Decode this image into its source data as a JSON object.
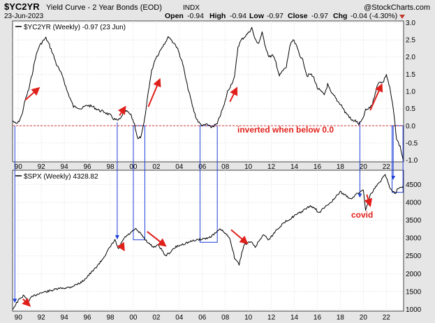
{
  "header": {
    "symbol": "$YC2YR",
    "description": "Yield Curve - 2 Year Bonds (EOD)",
    "exchange": "INDX",
    "date": "23-Jun-2023",
    "watermark": "@StockCharts.com",
    "ohlc": [
      {
        "label": "Open",
        "value": "-0.94"
      },
      {
        "label": "High",
        "value": "-0.94"
      },
      {
        "label": "Low",
        "value": "-0.97"
      },
      {
        "label": "Close",
        "value": "-0.97"
      },
      {
        "label": "Chg",
        "value": "-0.04 (-4.30%)"
      }
    ],
    "change_arrow": "triangle-down-icon"
  },
  "colors": {
    "background": "#e6e6e6",
    "panel": "#ffffff",
    "line": "#000000",
    "annotation": "#e0201b",
    "blue_marker": "#1f3fd6",
    "zero_line": "#d23a3a"
  },
  "chart_data": [
    {
      "type": "line",
      "legend": "$YC2YR (Weekly) -0.97 (23 Jun)",
      "x_range": [
        1989.5,
        2023.5
      ],
      "ylim": [
        -1.05,
        3.05
      ],
      "y_ticks": [
        -1.0,
        -0.5,
        0.0,
        0.5,
        1.0,
        1.5,
        2.0,
        2.5,
        3.0
      ],
      "y_tick_labels": [
        "-1.0",
        "-0.5",
        "0.0",
        "0.5",
        "1.0",
        "1.5",
        "2.0",
        "2.5",
        "3.0"
      ],
      "x_ticks": [
        1990,
        1992,
        1994,
        1996,
        1998,
        2000,
        2002,
        2004,
        2006,
        2008,
        2010,
        2012,
        2014,
        2016,
        2018,
        2020,
        2022
      ],
      "x_tick_labels": [
        "90",
        "92",
        "94",
        "96",
        "98",
        "00",
        "02",
        "04",
        "06",
        "08",
        "10",
        "12",
        "14",
        "16",
        "18",
        "20",
        "22"
      ],
      "grid": true,
      "reference_line": {
        "y": 0.0,
        "style": "dashed",
        "color": "#d23a3a"
      },
      "annotations": [
        {
          "text": "inverted when below 0.0",
          "x": 2014.5,
          "y": -0.25
        }
      ],
      "series": [
        {
          "x": [
            1989.5,
            1989.8,
            1990.0,
            1990.3,
            1990.6,
            1990.9,
            1991.2,
            1991.5,
            1991.8,
            1992.1,
            1992.4,
            1992.7,
            1993.0,
            1993.3,
            1993.6,
            1993.9,
            1994.2,
            1994.5,
            1994.8,
            1995.1,
            1995.5,
            1996.0,
            1996.5,
            1997.0,
            1997.5,
            1998.0,
            1998.3,
            1998.6,
            1998.9,
            1999.2,
            1999.5,
            1999.8,
            2000.1,
            2000.4,
            2000.7,
            2001.0,
            2001.3,
            2001.6,
            2001.9,
            2002.2,
            2002.5,
            2002.8,
            2003.1,
            2003.4,
            2003.7,
            2004.0,
            2004.3,
            2004.6,
            2004.9,
            2005.2,
            2005.5,
            2005.8,
            2006.1,
            2006.4,
            2006.7,
            2007.0,
            2007.3,
            2007.6,
            2007.9,
            2008.2,
            2008.5,
            2008.8,
            2009.1,
            2009.4,
            2009.7,
            2010.0,
            2010.3,
            2010.6,
            2010.9,
            2011.2,
            2011.5,
            2011.8,
            2012.1,
            2012.4,
            2012.7,
            2013.0,
            2013.3,
            2013.6,
            2013.9,
            2014.2,
            2014.5,
            2014.8,
            2015.1,
            2015.4,
            2015.7,
            2016.0,
            2016.3,
            2016.6,
            2016.9,
            2017.2,
            2017.5,
            2017.8,
            2018.1,
            2018.4,
            2018.7,
            2019.0,
            2019.3,
            2019.6,
            2019.9,
            2020.2,
            2020.5,
            2020.8,
            2021.1,
            2021.4,
            2021.7,
            2022.0,
            2022.3,
            2022.6,
            2022.9,
            2023.2,
            2023.45
          ],
          "y": [
            0.15,
            0.05,
            0.1,
            0.3,
            0.75,
            1.05,
            1.5,
            2.0,
            2.3,
            2.45,
            2.55,
            2.35,
            2.1,
            1.8,
            1.6,
            1.4,
            1.05,
            0.8,
            0.55,
            0.55,
            0.5,
            0.6,
            0.55,
            0.45,
            0.4,
            0.3,
            0.2,
            0.15,
            0.2,
            0.45,
            0.4,
            0.3,
            0.05,
            -0.4,
            -0.3,
            0.2,
            1.0,
            1.6,
            1.95,
            2.1,
            2.3,
            2.45,
            2.6,
            2.45,
            2.35,
            2.1,
            1.8,
            1.3,
            0.9,
            0.5,
            0.2,
            0.05,
            0.0,
            0.05,
            -0.05,
            0.0,
            0.05,
            0.35,
            0.6,
            1.0,
            1.2,
            1.4,
            2.3,
            2.5,
            2.6,
            2.7,
            2.85,
            2.5,
            2.4,
            2.7,
            2.3,
            2.0,
            2.05,
            1.85,
            1.45,
            1.6,
            1.7,
            2.3,
            2.5,
            2.3,
            2.05,
            1.85,
            1.45,
            1.5,
            1.4,
            1.1,
            1.0,
            0.9,
            1.2,
            0.95,
            0.85,
            0.7,
            0.6,
            0.4,
            0.3,
            0.15,
            0.15,
            0.05,
            0.15,
            0.45,
            0.5,
            0.65,
            1.05,
            1.3,
            1.25,
            1.5,
            1.1,
            0.5,
            -0.4,
            -0.6,
            -0.97
          ]
        }
      ]
    },
    {
      "type": "line",
      "legend": "$SPX (Weekly) 4328.82",
      "x_range": [
        1989.5,
        2023.5
      ],
      "ylim": [
        950,
        4900
      ],
      "y_ticks": [
        1000,
        1500,
        2000,
        2500,
        3000,
        3500,
        4000,
        4500
      ],
      "y_tick_labels": [
        "1000",
        "1500",
        "2000",
        "2500",
        "3000",
        "3500",
        "4000",
        "4500"
      ],
      "x_ticks": [
        1990,
        1992,
        1994,
        1996,
        1998,
        2000,
        2002,
        2004,
        2006,
        2008,
        2010,
        2012,
        2014,
        2016,
        2018,
        2020,
        2022
      ],
      "x_tick_labels": [
        "90",
        "92",
        "94",
        "96",
        "98",
        "00",
        "02",
        "04",
        "06",
        "08",
        "10",
        "12",
        "14",
        "16",
        "18",
        "20",
        "22"
      ],
      "grid": true,
      "annotations": [
        {
          "text": "covid",
          "x": 2020.2,
          "y": 3590
        }
      ],
      "series": [
        {
          "x": [
            1989.5,
            1990.0,
            1990.5,
            1990.8,
            1991.2,
            1991.8,
            1992.5,
            1993.5,
            1994.5,
            1995.5,
            1996.5,
            1997.2,
            1997.8,
            1998.4,
            1998.7,
            1999.2,
            1999.8,
            2000.2,
            2000.7,
            2001.2,
            2001.7,
            2002.2,
            2002.8,
            2003.2,
            2003.7,
            2004.5,
            2005.5,
            2006.5,
            2007.0,
            2007.6,
            2007.9,
            2008.4,
            2008.8,
            2009.2,
            2009.6,
            2010.2,
            2010.6,
            2011.3,
            2011.8,
            2012.5,
            2013.2,
            2013.9,
            2014.7,
            2015.4,
            2015.9,
            2016.1,
            2016.8,
            2017.5,
            2018.0,
            2018.4,
            2018.9,
            2019.5,
            2020.0,
            2020.2,
            2020.6,
            2021.0,
            2021.5,
            2021.9,
            2022.3,
            2022.8,
            2023.0,
            2023.45
          ],
          "y": [
            1000,
            1250,
            1400,
            1220,
            1350,
            1450,
            1500,
            1580,
            1620,
            1760,
            2080,
            2350,
            2650,
            2950,
            2680,
            3000,
            3150,
            3250,
            3100,
            2900,
            2750,
            2800,
            2500,
            2600,
            2750,
            2850,
            2950,
            3000,
            3100,
            3250,
            3150,
            3000,
            2450,
            2250,
            2800,
            2900,
            2750,
            3100,
            2950,
            3250,
            3450,
            3600,
            3750,
            3900,
            3800,
            3700,
            3900,
            4100,
            4300,
            4200,
            4100,
            4250,
            4350,
            3800,
            4200,
            4400,
            4600,
            4800,
            4400,
            4250,
            4400,
            4450
          ]
        }
      ]
    }
  ]
}
